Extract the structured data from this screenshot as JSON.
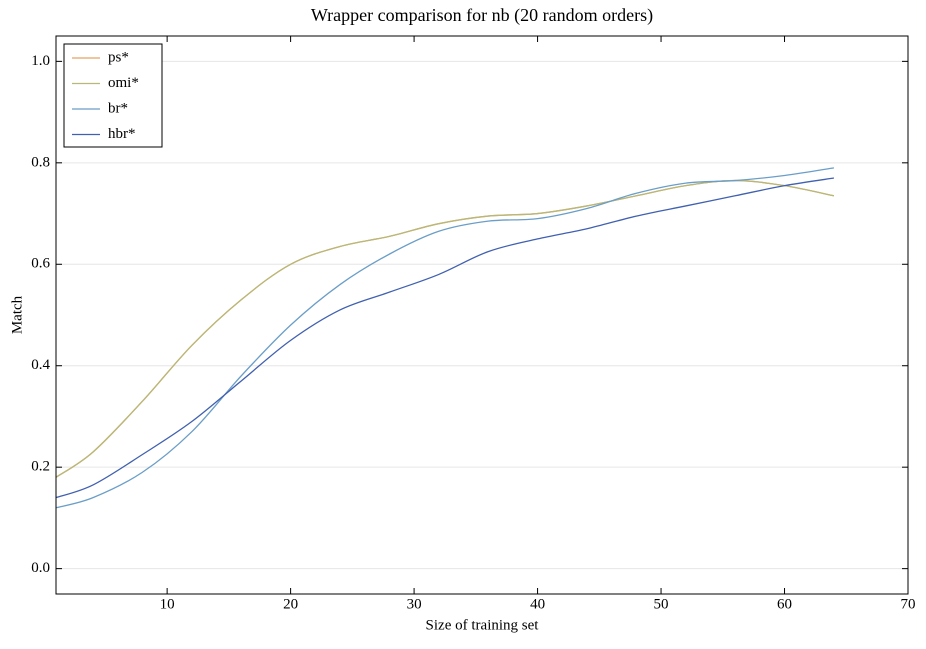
{
  "chart_data": {
    "type": "line",
    "title": "Wrapper comparison for nb (20 random orders)",
    "x_label": "Size of training set",
    "y_label": "Match",
    "x": [
      1,
      4,
      8,
      12,
      16,
      20,
      24,
      28,
      32,
      36,
      40,
      44,
      48,
      52,
      56,
      60,
      64
    ],
    "series": [
      {
        "name": "ps*",
        "color": "#e8a060",
        "values": [
          0.18,
          0.23,
          0.33,
          0.44,
          0.53,
          0.6,
          0.635,
          0.655,
          0.68,
          0.695,
          0.7,
          0.715,
          0.735,
          0.755,
          0.765,
          0.755,
          0.735
        ]
      },
      {
        "name": "omi*",
        "color": "#b8b878",
        "values": [
          0.18,
          0.23,
          0.33,
          0.44,
          0.53,
          0.6,
          0.635,
          0.655,
          0.68,
          0.695,
          0.7,
          0.715,
          0.735,
          0.755,
          0.765,
          0.755,
          0.735
        ]
      },
      {
        "name": "br*",
        "color": "#6a9ec8",
        "values": [
          0.12,
          0.14,
          0.19,
          0.27,
          0.38,
          0.48,
          0.56,
          0.62,
          0.665,
          0.685,
          0.69,
          0.71,
          0.74,
          0.76,
          0.765,
          0.775,
          0.79
        ]
      },
      {
        "name": "hbr*",
        "color": "#4060b0",
        "values": [
          0.14,
          0.165,
          0.225,
          0.29,
          0.37,
          0.45,
          0.51,
          0.545,
          0.58,
          0.625,
          0.65,
          0.67,
          0.695,
          0.715,
          0.735,
          0.755,
          0.77
        ]
      }
    ],
    "xlim": [
      1,
      70
    ],
    "xticks": [
      10,
      20,
      30,
      40,
      50,
      60,
      70
    ],
    "ylim": [
      -0.05,
      1.05
    ],
    "yticks": [
      {
        "value": 0,
        "label": "0.0"
      },
      {
        "value": 0.2,
        "label": "0.2"
      },
      {
        "value": 0.4,
        "label": "0.4"
      },
      {
        "value": 0.6,
        "label": "0.6"
      },
      {
        "value": 0.8,
        "label": "0.8"
      },
      {
        "value": 1,
        "label": "1.0"
      }
    ],
    "grid": true,
    "legend": "upper left"
  }
}
